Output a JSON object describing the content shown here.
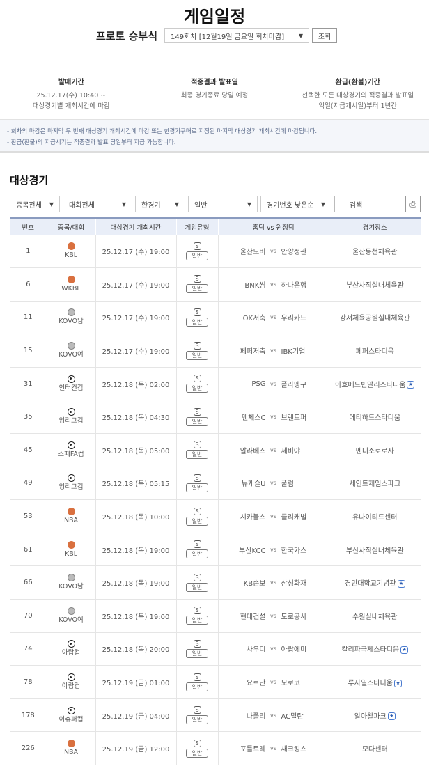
{
  "title": "게임일정",
  "round": {
    "label": "프로토 승부식",
    "selected": "149회차 [12월19일 금요일 회차마감]",
    "button": "조회"
  },
  "info": [
    {
      "heading": "발매기간",
      "lines": [
        "25.12.17(수) 10:40 ~",
        "대상경기별 개최시간에 마감"
      ]
    },
    {
      "heading": "적중결과 발표일",
      "lines": [
        "최종 경기종료 당일 예정"
      ]
    },
    {
      "heading": "환급(환불)기간",
      "lines": [
        "선택한 모든 대상경기의 적중결과 발표일",
        "익일(지급개시일)부터 1년간"
      ]
    }
  ],
  "notes": [
    "- 회차의 마감은 마지막 두 번째 대상경기 개최시간에 마감 또는 한경기구매로 지정된 마지막 대상경기 개최시간에 마감됩니다.",
    "- 환급(환불)의 지급시기는 적중결과 발표 당일부터 지급 가능합니다."
  ],
  "section_title": "대상경기",
  "filters": {
    "sport": "종목전체",
    "league": "대회전체",
    "match": "한경기",
    "type": "일반",
    "sort": "경기번호 낮은순",
    "search": "검색",
    "print_icon": "printer-icon"
  },
  "table": {
    "headers": [
      "번호",
      "종목/대회",
      "대상경기 개최시간",
      "게임유형",
      "홈팀 vs 원정팀",
      "경기장소"
    ],
    "vs": "vs",
    "type_icon": "S",
    "type_label": "일반",
    "rows": [
      {
        "no": "1",
        "sport": "basketball",
        "league": "KBL",
        "time": "25.12.17 (수) 19:00",
        "home": "울산모비",
        "away": "안양정관",
        "venue": "울산동천체육관",
        "star": false
      },
      {
        "no": "6",
        "sport": "basketball",
        "league": "WKBL",
        "time": "25.12.17 (수) 19:00",
        "home": "BNK썸",
        "away": "하나은행",
        "venue": "부산사직실내체육관",
        "star": false
      },
      {
        "no": "11",
        "sport": "volleyball",
        "league": "KOVO남",
        "time": "25.12.17 (수) 19:00",
        "home": "OK저축",
        "away": "우리카드",
        "venue": "강서체육공원실내체육관",
        "star": false
      },
      {
        "no": "15",
        "sport": "volleyball",
        "league": "KOVO여",
        "time": "25.12.17 (수) 19:00",
        "home": "페퍼저축",
        "away": "IBK기업",
        "venue": "페퍼스타디움",
        "star": false
      },
      {
        "no": "31",
        "sport": "soccer",
        "league": "인터컨컵",
        "time": "25.12.18 (목) 02:00",
        "home": "PSG",
        "away": "플라멩구",
        "venue": "아흐메드빈알리스타디움",
        "star": true
      },
      {
        "no": "35",
        "sport": "soccer",
        "league": "잉리그컵",
        "time": "25.12.18 (목) 04:30",
        "home": "맨체스C",
        "away": "브렌트퍼",
        "venue": "에티하드스타디움",
        "star": false
      },
      {
        "no": "45",
        "sport": "soccer",
        "league": "스페FA컵",
        "time": "25.12.18 (목) 05:00",
        "home": "알라베스",
        "away": "세비야",
        "venue": "멘디소로로사",
        "star": false
      },
      {
        "no": "49",
        "sport": "soccer",
        "league": "잉리그컵",
        "time": "25.12.18 (목) 05:15",
        "home": "뉴캐슬U",
        "away": "풀럼",
        "venue": "세인트제임스파크",
        "star": false
      },
      {
        "no": "53",
        "sport": "basketball",
        "league": "NBA",
        "time": "25.12.18 (목) 10:00",
        "home": "시카불스",
        "away": "클리캐벌",
        "venue": "유나이티드센터",
        "star": false
      },
      {
        "no": "61",
        "sport": "basketball",
        "league": "KBL",
        "time": "25.12.18 (목) 19:00",
        "home": "부산KCC",
        "away": "한국가스",
        "venue": "부산사직실내체육관",
        "star": false
      },
      {
        "no": "66",
        "sport": "volleyball",
        "league": "KOVO남",
        "time": "25.12.18 (목) 19:00",
        "home": "KB손보",
        "away": "삼성화재",
        "venue": "경민대학교기념관",
        "star": true
      },
      {
        "no": "70",
        "sport": "volleyball",
        "league": "KOVO여",
        "time": "25.12.18 (목) 19:00",
        "home": "현대건설",
        "away": "도로공사",
        "venue": "수원실내체육관",
        "star": false
      },
      {
        "no": "74",
        "sport": "soccer",
        "league": "아랍컵",
        "time": "25.12.18 (목) 20:00",
        "home": "사우디",
        "away": "아랍에미",
        "venue": "칼리파국제스타디움",
        "star": true
      },
      {
        "no": "78",
        "sport": "soccer",
        "league": "아랍컵",
        "time": "25.12.19 (금) 01:00",
        "home": "요르단",
        "away": "모로코",
        "venue": "루사일스타디움",
        "star": true
      },
      {
        "no": "178",
        "sport": "soccer",
        "league": "이슈퍼컵",
        "time": "25.12.19 (금) 04:00",
        "home": "나폴리",
        "away": "AC밀란",
        "venue": "알아왈파크",
        "star": true
      },
      {
        "no": "226",
        "sport": "basketball",
        "league": "NBA",
        "time": "25.12.19 (금) 12:00",
        "home": "포틀트레",
        "away": "새크킹스",
        "venue": "모다센터",
        "star": false
      }
    ]
  }
}
